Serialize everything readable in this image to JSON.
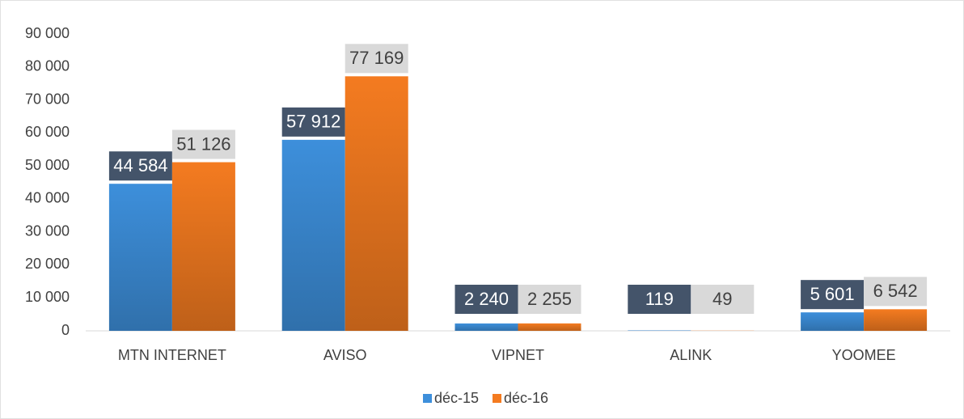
{
  "chart_data": {
    "type": "bar",
    "categories": [
      "MTN INTERNET",
      "AVISO",
      "VIPNET",
      "ALINK",
      "YOOMEE"
    ],
    "series": [
      {
        "name": "déc-15",
        "color": "#3d8fdb",
        "values": [
          44584,
          57912,
          2240,
          119,
          5601
        ],
        "value_labels": [
          "44 584",
          "57 912",
          "2 240",
          "119",
          "5 601"
        ]
      },
      {
        "name": "déc-16",
        "color": "#f47b20",
        "values": [
          51126,
          77169,
          2255,
          49,
          6542
        ],
        "value_labels": [
          "51 126",
          "77 169",
          "2 255",
          "49",
          "6 542"
        ]
      }
    ],
    "ylim": [
      0,
      90000
    ],
    "yticks": [
      0,
      {
        "value": 10000,
        "label": "10 000"
      },
      {
        "value": 20000,
        "label": "20 000"
      },
      {
        "value": 30000,
        "label": "30 000"
      },
      {
        "value": 40000,
        "label": "40 000"
      },
      {
        "value": 50000,
        "label": "50 000"
      },
      {
        "value": 60000,
        "label": "60 000"
      },
      {
        "value": 70000,
        "label": "70 000"
      },
      {
        "value": 80000,
        "label": "80 000"
      },
      {
        "value": 90000,
        "label": "90 000"
      }
    ],
    "grid": false,
    "legend": "bottom"
  }
}
